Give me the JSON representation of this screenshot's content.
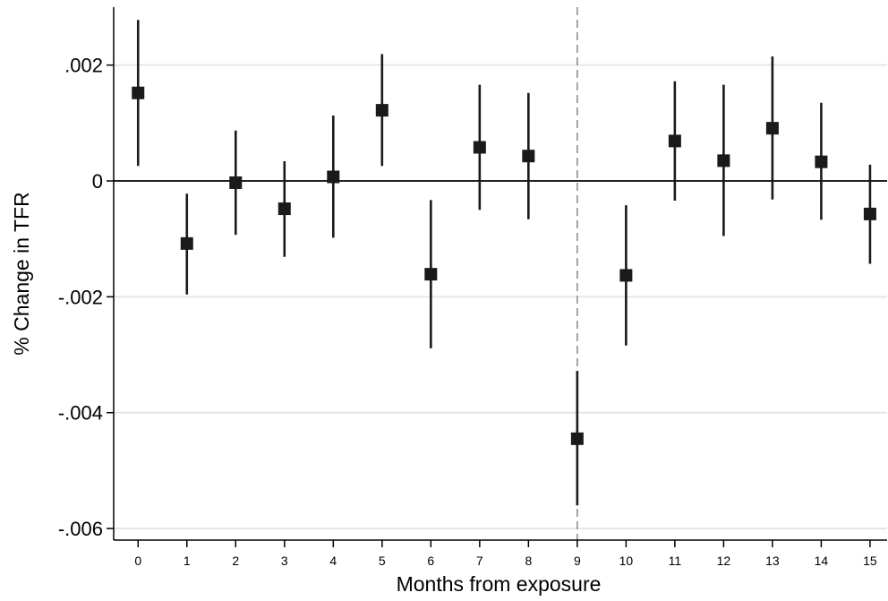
{
  "chart_data": {
    "type": "scatter",
    "subtype": "point-estimates-with-confidence-intervals",
    "title": "",
    "xlabel": "Months from exposure",
    "ylabel": "% Change in TFR",
    "xlim": [
      -0.5,
      15.35
    ],
    "ylim": [
      -0.0062,
      0.003
    ],
    "x_ticks": [
      0,
      1,
      2,
      3,
      4,
      5,
      6,
      7,
      8,
      9,
      10,
      11,
      12,
      13,
      14,
      15
    ],
    "x_tick_labels": [
      "0",
      "1",
      "2",
      "3",
      "4",
      "5",
      "6",
      "7",
      "8",
      "9",
      "10",
      "11",
      "12",
      "13",
      "14",
      "15"
    ],
    "y_ticks": [
      0.002,
      0,
      -0.002,
      -0.004,
      -0.006
    ],
    "y_tick_labels": [
      ".002",
      "0",
      "-.002",
      "-.004",
      "-.006"
    ],
    "grid": "horizontal",
    "reference_line_y": 0,
    "reference_line_x": 9,
    "reference_line_x_style": "dashed",
    "marker": "square",
    "colors": {
      "marker": "#1a1a1a",
      "ci_line": "#1a1a1a",
      "gridline": "#e6e6e6",
      "zero_line": "#222222",
      "dashed_line": "#888888",
      "axis": "#000000",
      "background": "#ffffff"
    },
    "series": [
      {
        "x": [
          0,
          1,
          2,
          3,
          4,
          5,
          6,
          7,
          8,
          9,
          10,
          11,
          12,
          13,
          14,
          15
        ],
        "y": [
          0.00152,
          -0.00108,
          -3e-05,
          -0.00048,
          7e-05,
          0.00122,
          -0.00161,
          0.00058,
          0.00043,
          -0.00445,
          -0.00163,
          0.00069,
          0.00035,
          0.00091,
          0.00033,
          -0.00057
        ],
        "ci_low": [
          0.00026,
          -0.00196,
          -0.00093,
          -0.00131,
          -0.00098,
          0.00026,
          -0.00289,
          -0.0005,
          -0.00066,
          -0.0056,
          -0.00284,
          -0.00034,
          -0.00095,
          -0.00032,
          -0.00067,
          -0.00143
        ],
        "ci_high": [
          0.00278,
          -0.00022,
          0.00087,
          0.00034,
          0.00113,
          0.00219,
          -0.00033,
          0.00166,
          0.00152,
          -0.00328,
          -0.00042,
          0.00172,
          0.00166,
          0.00215,
          0.00135,
          0.00028
        ]
      }
    ]
  }
}
